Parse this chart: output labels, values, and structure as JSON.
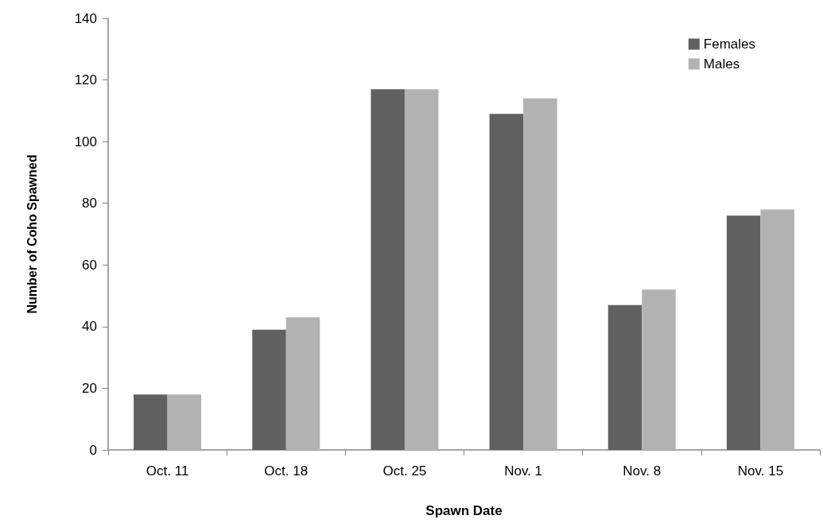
{
  "chart_data": {
    "type": "bar",
    "xlabel": "Spawn Date",
    "ylabel": "Number of Coho Spawned",
    "categories": [
      "Oct. 11",
      "Oct. 18",
      "Oct. 25",
      "Nov. 1",
      "Nov. 8",
      "Nov. 15"
    ],
    "series": [
      {
        "name": "Females",
        "color": "#616161",
        "values": [
          18,
          39,
          117,
          109,
          47,
          76
        ]
      },
      {
        "name": "Males",
        "color": "#b2b2b2",
        "values": [
          18,
          43,
          117,
          114,
          52,
          78
        ]
      }
    ],
    "ylim": [
      0,
      140
    ],
    "yticks": [
      0,
      20,
      40,
      60,
      80,
      100,
      120,
      140
    ],
    "grid": false,
    "legend": "top right"
  }
}
